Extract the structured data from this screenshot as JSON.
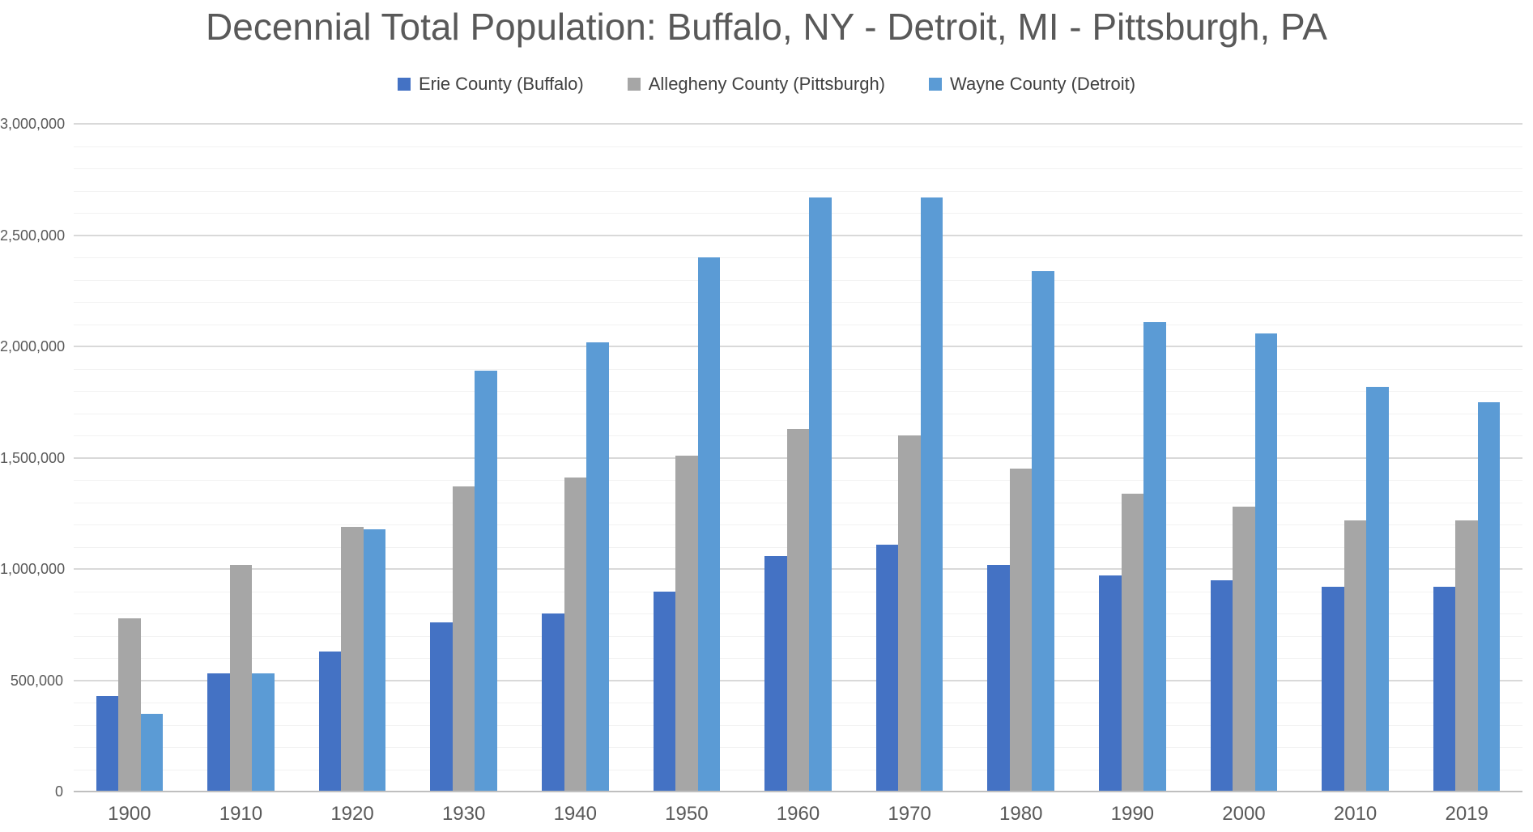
{
  "page": {
    "background_color": "#ffffff"
  },
  "chart_data": {
    "type": "bar",
    "title": "Decennial Total Population: Buffalo, NY - Detroit, MI - Pittsburgh, PA",
    "legend_position": "top",
    "grid": "on",
    "categories": [
      "1900",
      "1910",
      "1920",
      "1930",
      "1940",
      "1950",
      "1960",
      "1970",
      "1980",
      "1990",
      "2000",
      "2010",
      "2019"
    ],
    "series": [
      {
        "name": "Erie County (Buffalo)",
        "color": "#4472C4",
        "values": [
          430000,
          530000,
          630000,
          760000,
          800000,
          900000,
          1060000,
          1110000,
          1020000,
          970000,
          950000,
          920000,
          920000
        ]
      },
      {
        "name": "Allegheny County (Pittsburgh)",
        "color": "#A6A6A6",
        "values": [
          780000,
          1020000,
          1190000,
          1370000,
          1410000,
          1510000,
          1630000,
          1600000,
          1450000,
          1340000,
          1280000,
          1220000,
          1220000
        ]
      },
      {
        "name": "Wayne County (Detroit)",
        "color": "#5B9BD5",
        "values": [
          350000,
          530000,
          1180000,
          1890000,
          2020000,
          2400000,
          2670000,
          2670000,
          2340000,
          2110000,
          2060000,
          1820000,
          1750000
        ]
      }
    ],
    "xlabel": "",
    "ylabel": "",
    "ylim": [
      0,
      3000000
    ],
    "y_axis": {
      "min": 0,
      "max": 3000000,
      "major_step": 500000,
      "minor_step": 100000,
      "tick_labels": [
        "0",
        "500,000",
        "1,000,000",
        "1,500,000",
        "2,000,000",
        "2,500,000",
        "3,000,000"
      ]
    },
    "style": {
      "major_grid_color": "#d9d9d9",
      "minor_grid_color": "#f2f2f2",
      "axis_line_color": "#bfbfbf",
      "title_color": "#595959",
      "axis_text_color": "#595959",
      "legend_text_color": "#404040"
    }
  }
}
